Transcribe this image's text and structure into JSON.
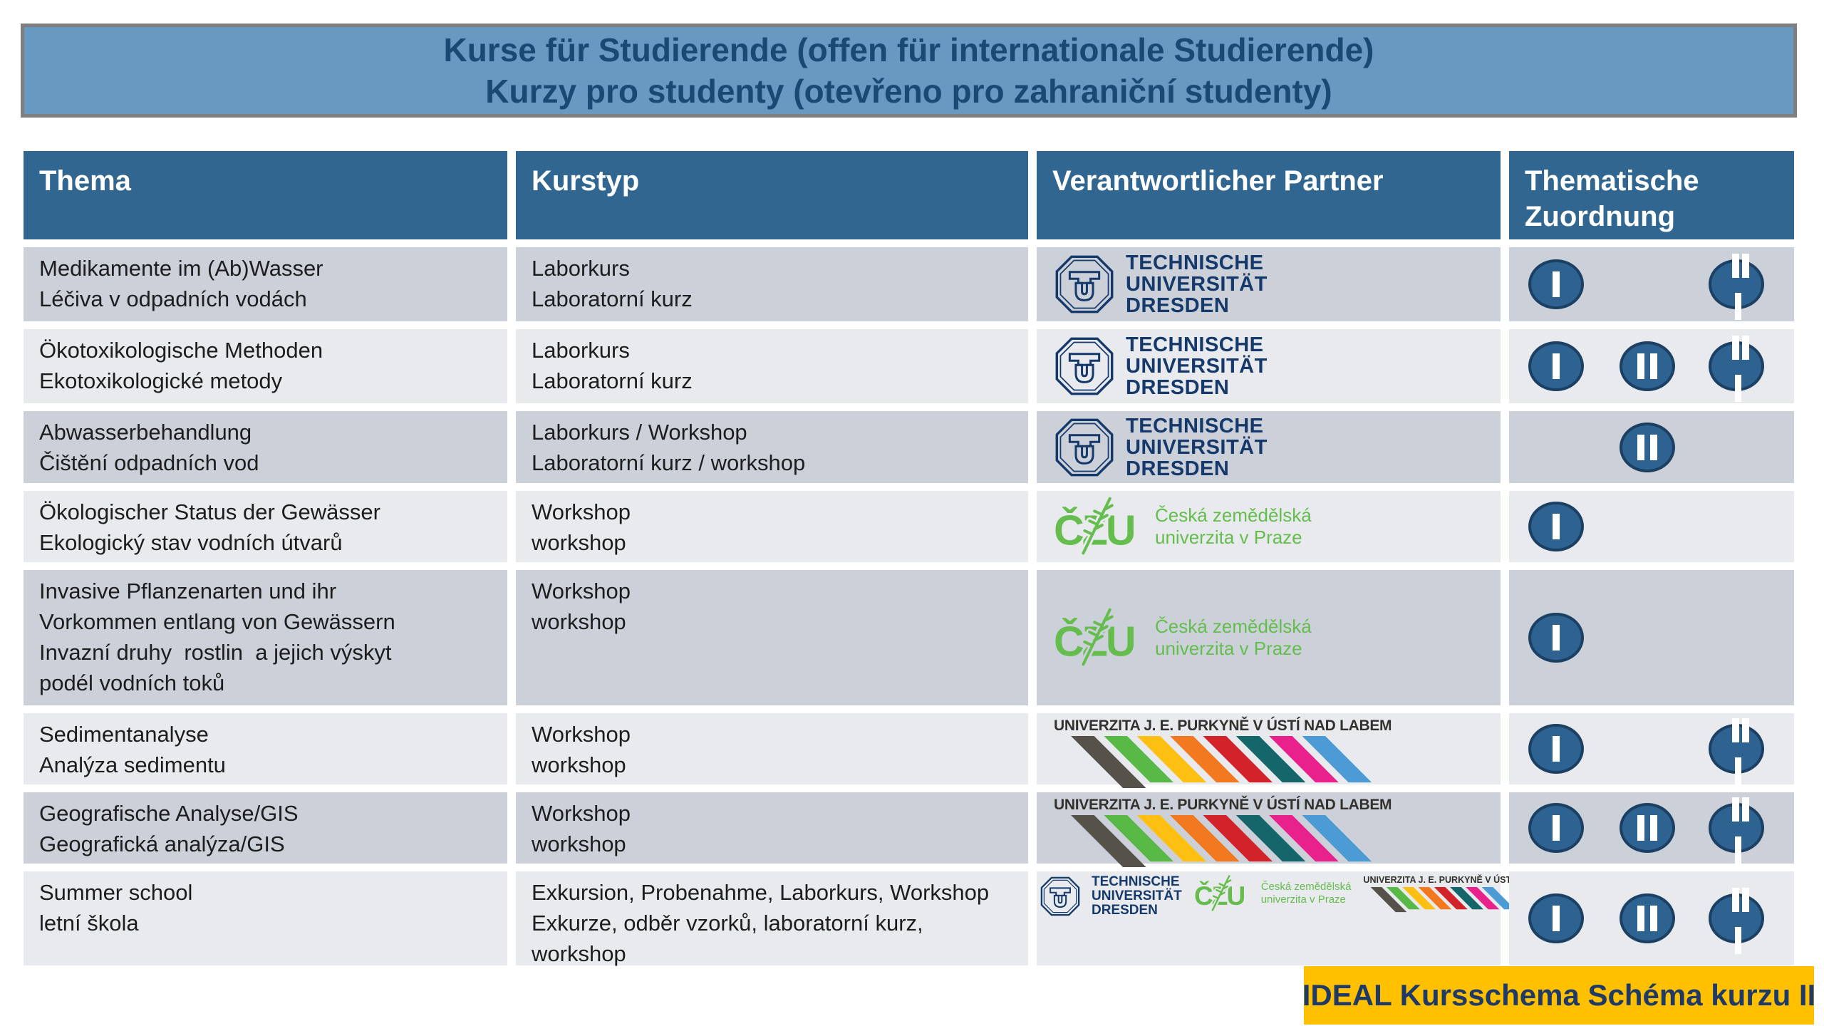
{
  "title": {
    "line1": "Kurse für Studierende (offen für internationale Studierende)",
    "line2": "Kurzy pro studenty (otevřeno pro zahraniční studenty)"
  },
  "table": {
    "headers": {
      "thema": "Thema",
      "kurstyp": "Kurstyp",
      "partner": "Verantwortlicher Partner",
      "zuordnung": "Thematische Zuordnung"
    },
    "rows": [
      {
        "thema": [
          "Medikamente im (Ab)Wasser",
          "Léčiva v odpadních vodách"
        ],
        "kurstyp": [
          "Laborkurs",
          "Laboratorní kurz"
        ],
        "partners": [
          "tud"
        ],
        "badges": [
          "I",
          "III"
        ]
      },
      {
        "thema": [
          "Ökotoxikologische Methoden",
          "Ekotoxikologické metody"
        ],
        "kurstyp": [
          "Laborkurs",
          "Laboratorní kurz"
        ],
        "partners": [
          "tud"
        ],
        "badges": [
          "I",
          "II",
          "III"
        ]
      },
      {
        "thema": [
          "Abwasserbehandlung",
          "Čištění odpadních vod"
        ],
        "kurstyp": [
          "Laborkurs / Workshop",
          "Laboratorní kurz / workshop"
        ],
        "partners": [
          "tud"
        ],
        "badges": [
          "II"
        ]
      },
      {
        "thema": [
          "Ökologischer Status der Gewässer",
          "Ekologický stav vodních útvarů"
        ],
        "kurstyp": [
          "Workshop",
          "workshop"
        ],
        "partners": [
          "czu"
        ],
        "badges": [
          "I"
        ]
      },
      {
        "thema": [
          "Invasive Pflanzenarten und ihr",
          "Vorkommen entlang von Gewässern",
          "Invazní druhy  rostlin  a jejich výskyt",
          "podél vodních toků"
        ],
        "kurstyp": [
          "Workshop",
          "workshop"
        ],
        "partners": [
          "czu"
        ],
        "badges": [
          "I"
        ]
      },
      {
        "thema": [
          "Sedimentanalyse",
          "Analýza sedimentu"
        ],
        "kurstyp": [
          "Workshop",
          "workshop"
        ],
        "partners": [
          "ujep"
        ],
        "badges": [
          "I",
          "III"
        ]
      },
      {
        "thema": [
          "Geografische Analyse/GIS",
          "Geografická analýza/GIS"
        ],
        "kurstyp": [
          "Workshop",
          "workshop"
        ],
        "partners": [
          "ujep"
        ],
        "badges": [
          "I",
          "II",
          "III"
        ]
      },
      {
        "thema": [
          "Summer school",
          "letní škola"
        ],
        "kurstyp": [
          "Exkursion, Probenahme, Laborkurs, Workshop",
          "Exkurze, odběr vzorků, laboratorní kurz,",
          "workshop"
        ],
        "partners": [
          "tud",
          "czu",
          "ujep"
        ],
        "badges": [
          "I",
          "II",
          "III"
        ]
      }
    ]
  },
  "partners": {
    "tud": {
      "lines": [
        "TECHNISCHE",
        "UNIVERSITÄT",
        "DRESDEN"
      ],
      "color": "#16396B"
    },
    "czu": {
      "monogram": "ČZU",
      "lines": [
        "Česká zemědělská",
        "univerzita v Praze"
      ],
      "color": "#65BD4E"
    },
    "ujep": {
      "title": "UNIVERZITA J. E. PURKYNĚ V ÚSTÍ NAD LABEM",
      "color": "#33312E",
      "stripe_colors": [
        "#57514B",
        "#58B947",
        "#FCBF12",
        "#F2791F",
        "#D2232A",
        "#14666B",
        "#E8218C",
        "#4D9BD5"
      ]
    }
  },
  "badges": {
    "numerals": [
      "I",
      "II",
      "III"
    ],
    "fill": "#2E6290",
    "border": "#1C4063",
    "bar_color": "#ffffff"
  },
  "footer": {
    "label": "IDEAL Kursschema Schéma kurzu II",
    "bg": "#FFC000",
    "color": "#1F3A67"
  },
  "colors": {
    "banner_bg": "#6899C1",
    "banner_border": "#7f7f7f",
    "banner_text": "#1A4A74",
    "header_bg": "#316691",
    "row_dark": "#CBD0D9",
    "row_light": "#E8EAED",
    "body_text": "#1d1d20"
  }
}
